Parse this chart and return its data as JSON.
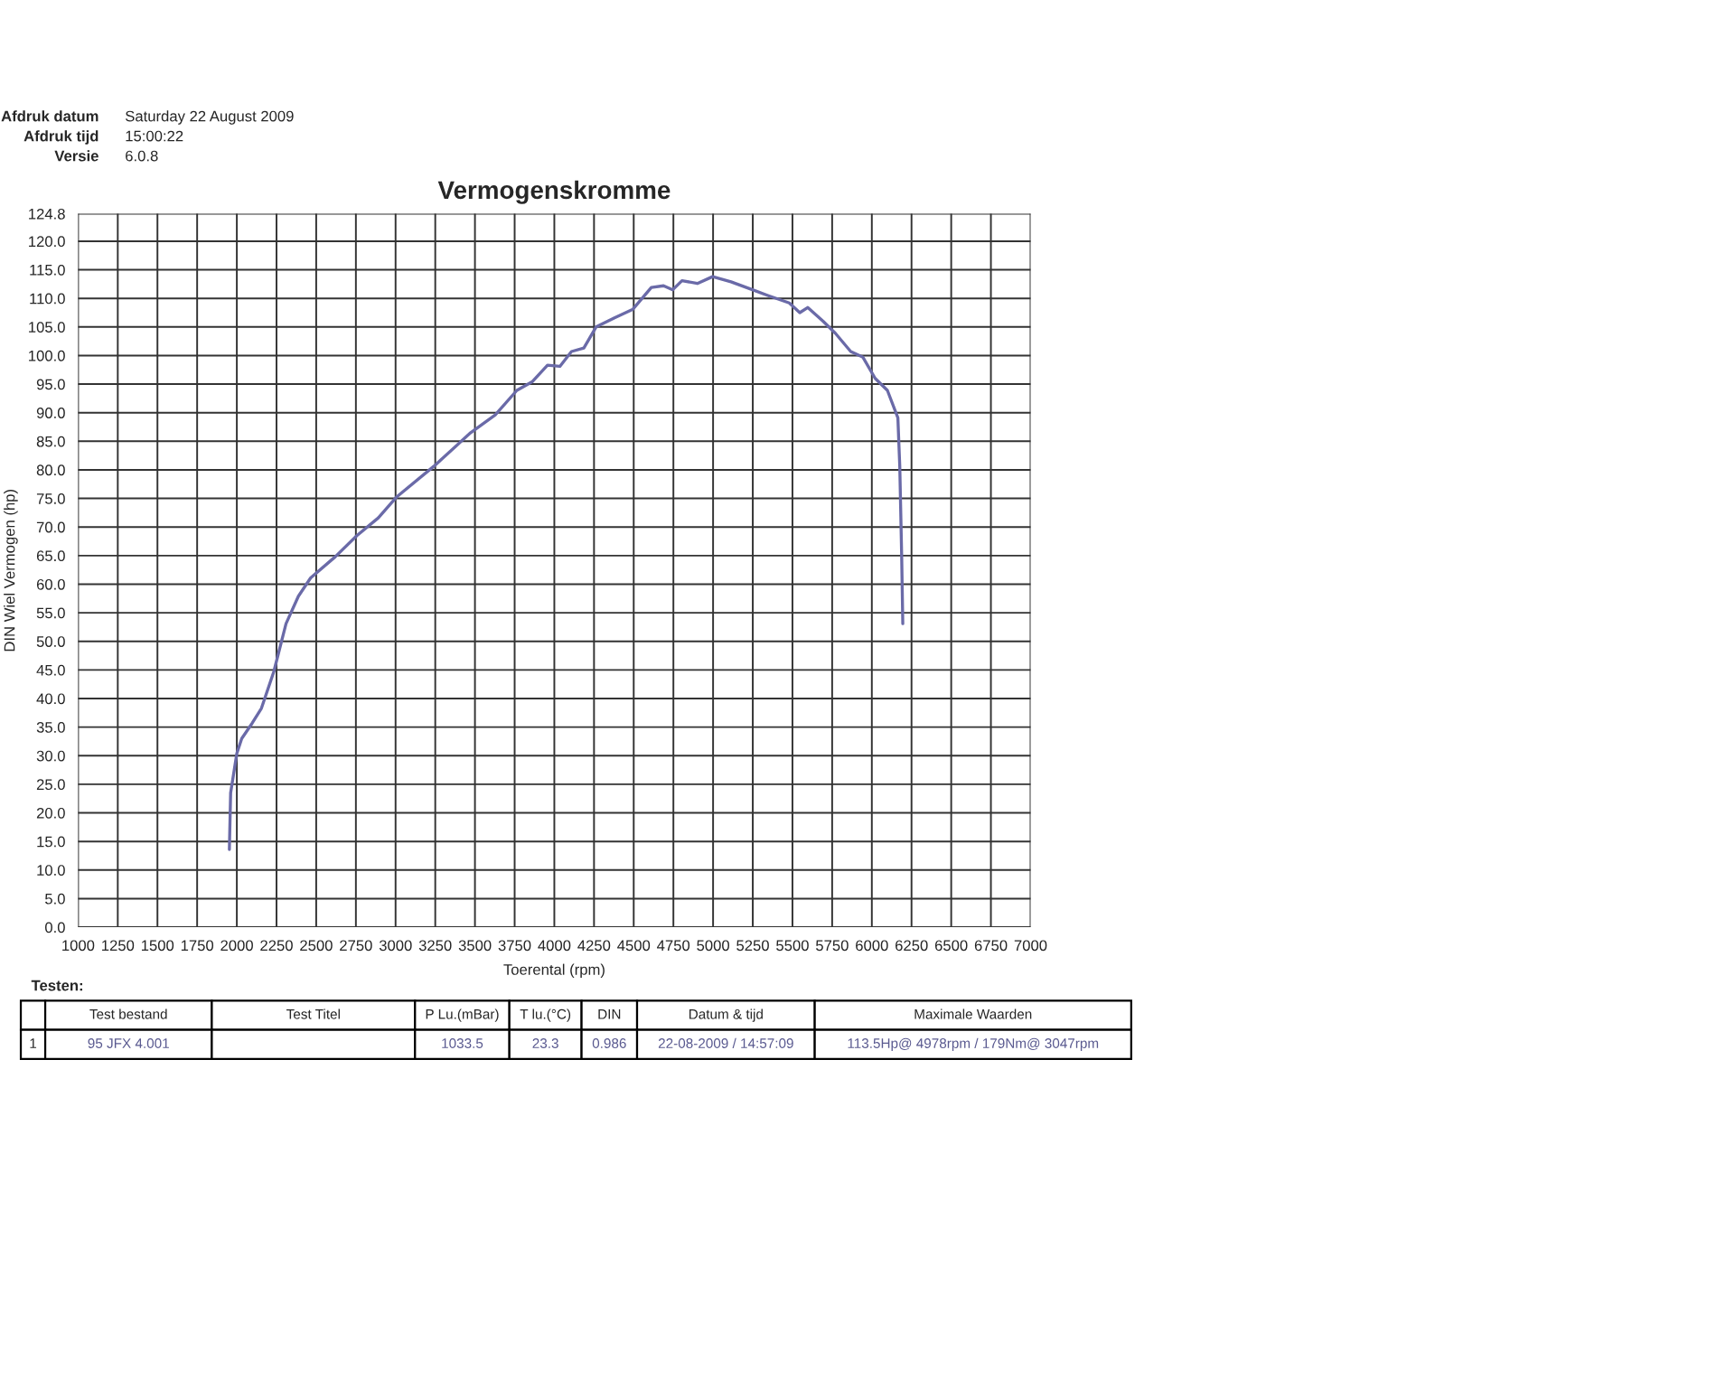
{
  "chart_data": {
    "type": "line",
    "title": "Vermogenskromme",
    "xlabel": "Toerental (rpm)",
    "ylabel": "DIN Wiel Vermogen (hp)",
    "x": [
      1953,
      1961,
      2000,
      2031,
      2097,
      2155,
      2233,
      2310,
      2388,
      2465,
      2620,
      2756,
      2891,
      3008,
      3240,
      3473,
      3628,
      3764,
      3860,
      3957,
      4035,
      4108,
      4186,
      4263,
      4379,
      4495,
      4611,
      4688,
      4746,
      4804,
      4901,
      4997,
      5113,
      5248,
      5345,
      5480,
      5546,
      5596,
      5693,
      5770,
      5867,
      5944,
      6021,
      6098,
      6164,
      6176,
      6188,
      6195
    ],
    "series": [
      {
        "color": "#6a6aa8",
        "values": [
          13.6,
          23.5,
          30.4,
          33,
          35.7,
          38.3,
          44.7,
          53.1,
          57.9,
          61.1,
          64.8,
          68.5,
          71.6,
          75.3,
          80.6,
          86.5,
          89.6,
          93.9,
          95.4,
          98.3,
          98.1,
          100.7,
          101.3,
          105,
          106.6,
          108.1,
          111.9,
          112.2,
          111.5,
          113.1,
          112.6,
          113.8,
          112.9,
          111.5,
          110.5,
          109.2,
          107.5,
          108.4,
          106,
          103.9,
          100.7,
          99.7,
          96,
          93.9,
          89.1,
          80.6,
          64.8,
          53.1
        ]
      }
    ],
    "xlim": [
      1000,
      7000
    ],
    "xticks": [
      1000,
      1250,
      1500,
      1750,
      2000,
      2250,
      2500,
      2750,
      3000,
      3250,
      3500,
      3750,
      4000,
      4250,
      4500,
      4750,
      5000,
      5250,
      5500,
      5750,
      6000,
      6250,
      6500,
      6750,
      7000
    ],
    "ylim": [
      0,
      124.8
    ],
    "yticks": [
      {
        "value": 0,
        "label": "0.0"
      },
      {
        "value": 5,
        "label": "5.0"
      },
      {
        "value": 10,
        "label": "10.0"
      },
      {
        "value": 15,
        "label": "15.0"
      },
      {
        "value": 20,
        "label": "20.0"
      },
      {
        "value": 25,
        "label": "25.0"
      },
      {
        "value": 30,
        "label": "30.0"
      },
      {
        "value": 35,
        "label": "35.0"
      },
      {
        "value": 40,
        "label": "40.0"
      },
      {
        "value": 45,
        "label": "45.0"
      },
      {
        "value": 50,
        "label": "50.0"
      },
      {
        "value": 55,
        "label": "55.0"
      },
      {
        "value": 60,
        "label": "60.0"
      },
      {
        "value": 65,
        "label": "65.0"
      },
      {
        "value": 70,
        "label": "70.0"
      },
      {
        "value": 75,
        "label": "75.0"
      },
      {
        "value": 80,
        "label": "80.0"
      },
      {
        "value": 85,
        "label": "85.0"
      },
      {
        "value": 90,
        "label": "90.0"
      },
      {
        "value": 95,
        "label": "95.0"
      },
      {
        "value": 100,
        "label": "100.0"
      },
      {
        "value": 105,
        "label": "105.0"
      },
      {
        "value": 110,
        "label": "110.0"
      },
      {
        "value": 115,
        "label": "115.0"
      },
      {
        "value": 120,
        "label": "120.0"
      },
      {
        "value": 124.8,
        "label": "124.8"
      }
    ],
    "grid": true,
    "marker": "none",
    "line_style": "solid",
    "annotations": [
      "Afdruk datum",
      "Saturday 22 August 2009",
      "Afdruk tijd",
      "15:00:22",
      "Versie",
      "6.0.8",
      "Testen:",
      "Test bestand",
      "Test Titel",
      "P Lu.(mBar)",
      "T lu.(°C)",
      "DIN",
      "Datum & tijd",
      "Maximale Waarden",
      "1",
      "95 JFX 4.001",
      "1033.5",
      "23.3",
      "0.986",
      "22-08-2009 / 14:57:09",
      "113.5Hp@ 4978rpm / 179Nm@ 3047rpm"
    ]
  }
}
